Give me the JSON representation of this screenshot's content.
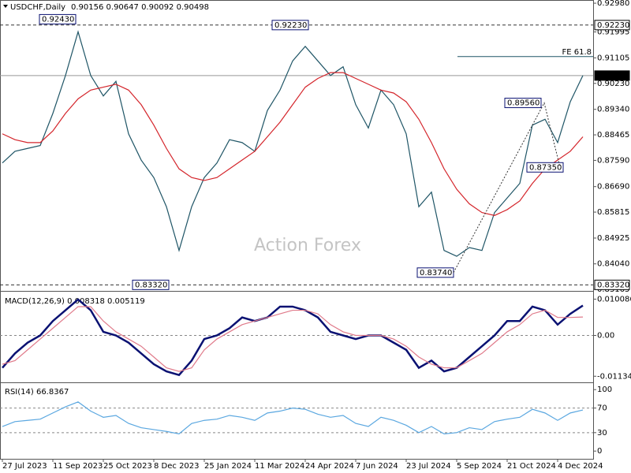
{
  "chart_data": [
    {
      "type": "line",
      "title": "USDCHF,Daily",
      "subtitle": "0.90156 0.90647 0.90092 0.90498",
      "watermark": "Action Forex",
      "categories": [
        "27 Jul 2023",
        null,
        null,
        null,
        "11 Sep 2023",
        null,
        null,
        null,
        "25 Oct 2023",
        null,
        null,
        null,
        "8 Dec 2023",
        null,
        null,
        null,
        "25 Jan 2024",
        null,
        null,
        null,
        "11 Mar 2024",
        null,
        null,
        null,
        "24 Apr 2024",
        null,
        null,
        null,
        "7 Jun 2024",
        null,
        null,
        null,
        "23 Jul 2024",
        null,
        null,
        null,
        "5 Sep 2024",
        null,
        null,
        null,
        "21 Oct 2024",
        null,
        null,
        null,
        "4 Dec 2024",
        null,
        null
      ],
      "series": [
        {
          "name": "USDCHF",
          "color": "#1f5566",
          "values": [
            0.875,
            0.879,
            0.88,
            0.881,
            0.892,
            0.905,
            0.92,
            0.905,
            0.898,
            0.903,
            0.885,
            0.876,
            0.87,
            0.86,
            0.845,
            0.86,
            0.87,
            0.875,
            0.883,
            0.882,
            0.879,
            0.893,
            0.9,
            0.91,
            0.915,
            0.91,
            0.905,
            0.908,
            0.895,
            0.887,
            0.9,
            0.895,
            0.885,
            0.86,
            0.865,
            0.845,
            0.843,
            0.846,
            0.845,
            0.858,
            0.863,
            0.868,
            0.888,
            0.89,
            0.882,
            0.896,
            0.905
          ]
        },
        {
          "name": "MA",
          "color": "#d4252b",
          "values": [
            0.885,
            0.883,
            0.882,
            0.882,
            0.886,
            0.892,
            0.897,
            0.9,
            0.901,
            0.902,
            0.9,
            0.895,
            0.888,
            0.88,
            0.873,
            0.87,
            0.869,
            0.87,
            0.873,
            0.876,
            0.879,
            0.884,
            0.889,
            0.895,
            0.901,
            0.904,
            0.906,
            0.906,
            0.904,
            0.902,
            0.9,
            0.899,
            0.896,
            0.89,
            0.882,
            0.873,
            0.866,
            0.861,
            0.858,
            0.857,
            0.859,
            0.862,
            0.868,
            0.873,
            0.876,
            0.879,
            0.884
          ]
        }
      ],
      "ylim": [
        0.8314,
        0.9309
      ],
      "yticks": [
        {
          "value": 0.9298,
          "label": "0.92980"
        },
        0.91995,
        0.91105,
        {
          "value": 0.9023,
          "label": "0.90230"
        },
        {
          "value": 0.8934,
          "label": "0.89340"
        },
        0.88465,
        {
          "value": 0.8759,
          "label": "0.87590"
        },
        {
          "value": 0.8669,
          "label": "0.86690"
        },
        0.85815,
        0.84925,
        {
          "value": 0.8404,
          "label": "0.84040"
        },
        0.83165
      ],
      "levels": [
        {
          "value": 0.9223,
          "label": "0.92230",
          "style": "dashed"
        },
        {
          "value": 0.90498,
          "label": "0.90498",
          "style": "current"
        },
        {
          "value": 0.8332,
          "label": "0.83320",
          "style": "dashed"
        }
      ],
      "fe_line": {
        "value": 0.9115,
        "label": "FE 61.8"
      },
      "annotations": [
        {
          "value": 0.9243,
          "label": "0.92430"
        },
        {
          "value": 0.9223,
          "label": "0.92230"
        },
        {
          "value": 0.8956,
          "label": "0.89560"
        },
        {
          "value": 0.8735,
          "label": "0.87350"
        },
        {
          "value": 0.8374,
          "label": "0.83740"
        },
        {
          "value": 0.8332,
          "label": "0.83320"
        }
      ]
    },
    {
      "type": "line",
      "title": "MACD(12,26,9) 0.008318 0.005119",
      "series": [
        {
          "name": "MACD",
          "color": "#0a1172",
          "values": [
            -0.009,
            -0.005,
            -0.002,
            0.0,
            0.004,
            0.007,
            0.01,
            0.007,
            0.001,
            0.0,
            -0.002,
            -0.005,
            -0.008,
            -0.01,
            -0.011,
            -0.007,
            -0.001,
            0.0,
            0.002,
            0.005,
            0.004,
            0.005,
            0.008,
            0.008,
            0.007,
            0.005,
            0.001,
            0.0,
            -0.001,
            0.0,
            0.0,
            -0.002,
            -0.004,
            -0.009,
            -0.007,
            -0.01,
            -0.009,
            -0.006,
            -0.003,
            0.0,
            0.004,
            0.004,
            0.008,
            0.007,
            0.003,
            0.006,
            0.008318
          ]
        },
        {
          "name": "Signal",
          "color": "#e07a8a",
          "values": [
            -0.008,
            -0.007,
            -0.004,
            -0.001,
            0.002,
            0.005,
            0.008,
            0.008,
            0.004,
            0.001,
            -0.001,
            -0.003,
            -0.006,
            -0.009,
            -0.01,
            -0.009,
            -0.004,
            -0.001,
            0.001,
            0.003,
            0.004,
            0.005,
            0.006,
            0.007,
            0.007,
            0.006,
            0.003,
            0.001,
            0.0,
            0.0,
            0.0,
            -0.001,
            -0.003,
            -0.006,
            -0.008,
            -0.009,
            -0.009,
            -0.007,
            -0.005,
            -0.002,
            0.001,
            0.003,
            0.006,
            0.007,
            0.005,
            0.005,
            0.005119
          ]
        }
      ],
      "ylim": [
        -0.0126,
        0.0115
      ],
      "yticks": [
        0.010086,
        {
          "value": 0,
          "label": "0.00"
        },
        -0.011342
      ],
      "dashed_levels": [
        0
      ]
    },
    {
      "type": "line",
      "title": "RSI(14) 66.8367",
      "series": [
        {
          "name": "RSI",
          "color": "#5aa7e0",
          "values": [
            40,
            48,
            50,
            52,
            62,
            72,
            80,
            65,
            55,
            58,
            45,
            38,
            35,
            32,
            28,
            45,
            50,
            52,
            58,
            55,
            50,
            62,
            65,
            70,
            68,
            60,
            55,
            58,
            45,
            40,
            55,
            50,
            42,
            30,
            40,
            28,
            30,
            38,
            35,
            48,
            52,
            55,
            68,
            62,
            50,
            62,
            66.8367
          ]
        }
      ],
      "ylim": [
        -10,
        108
      ],
      "yticks": [
        100,
        70,
        30,
        0
      ],
      "dashed_levels": [
        70,
        30
      ]
    }
  ]
}
